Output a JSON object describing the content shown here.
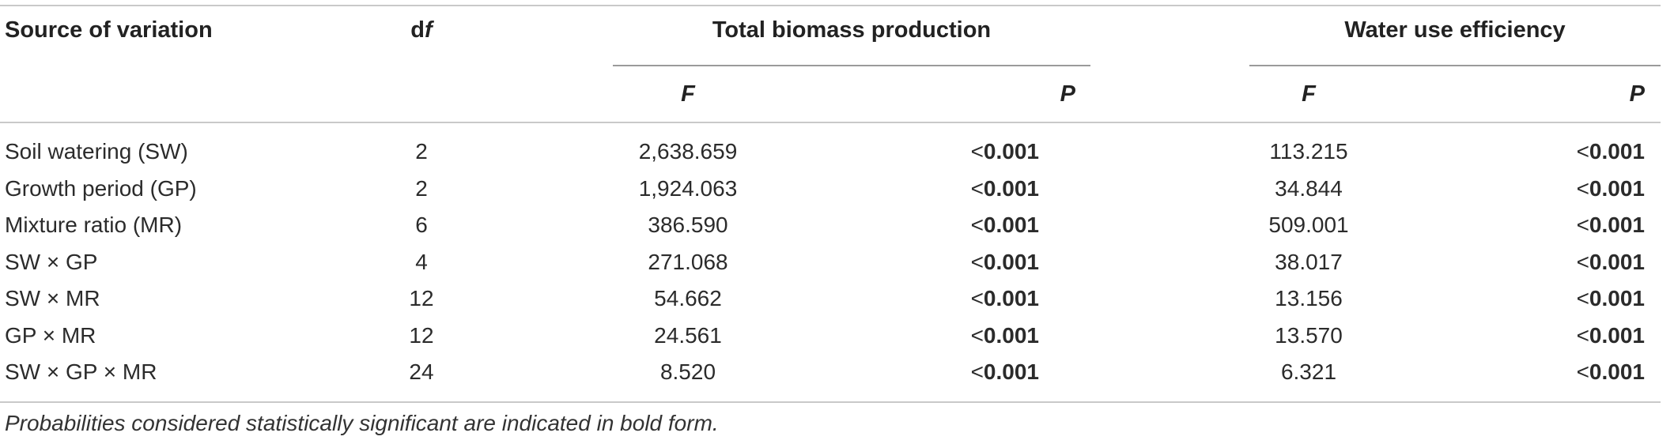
{
  "header": {
    "source": "Source of variation",
    "df_letter": "d",
    "df_italic": "f",
    "total_biomass": "Total biomass production",
    "water_use_efficiency": "Water use efficiency",
    "f_label": "F",
    "p_label": "P"
  },
  "rows": [
    {
      "source": "Soil watering (SW)",
      "df": "2",
      "tbp_f": "2,638.659",
      "tbp_p_lt": "<",
      "tbp_p": "0.001",
      "wue_f": "113.215",
      "wue_p_lt": "<",
      "wue_p": "0.001"
    },
    {
      "source": "Growth period (GP)",
      "df": "2",
      "tbp_f": "1,924.063",
      "tbp_p_lt": "<",
      "tbp_p": "0.001",
      "wue_f": "34.844",
      "wue_p_lt": "<",
      "wue_p": "0.001"
    },
    {
      "source": "Mixture ratio (MR)",
      "df": "6",
      "tbp_f": "386.590",
      "tbp_p_lt": "<",
      "tbp_p": "0.001",
      "wue_f": "509.001",
      "wue_p_lt": "<",
      "wue_p": "0.001"
    },
    {
      "source": "SW × GP",
      "df": "4",
      "tbp_f": "271.068",
      "tbp_p_lt": "<",
      "tbp_p": "0.001",
      "wue_f": "38.017",
      "wue_p_lt": "<",
      "wue_p": "0.001"
    },
    {
      "source": "SW × MR",
      "df": "12",
      "tbp_f": "54.662",
      "tbp_p_lt": "<",
      "tbp_p": "0.001",
      "wue_f": "13.156",
      "wue_p_lt": "<",
      "wue_p": "0.001"
    },
    {
      "source": "GP × MR",
      "df": "12",
      "tbp_f": "24.561",
      "tbp_p_lt": "<",
      "tbp_p": "0.001",
      "wue_f": "13.570",
      "wue_p_lt": "<",
      "wue_p": "0.001"
    },
    {
      "source": "SW × GP × MR",
      "df": "24",
      "tbp_f": "8.520",
      "tbp_p_lt": "<",
      "tbp_p": "0.001",
      "wue_f": "6.321",
      "wue_p_lt": "<",
      "wue_p": "0.001"
    }
  ],
  "footnote": "Probabilities considered statistically significant are indicated in bold form."
}
